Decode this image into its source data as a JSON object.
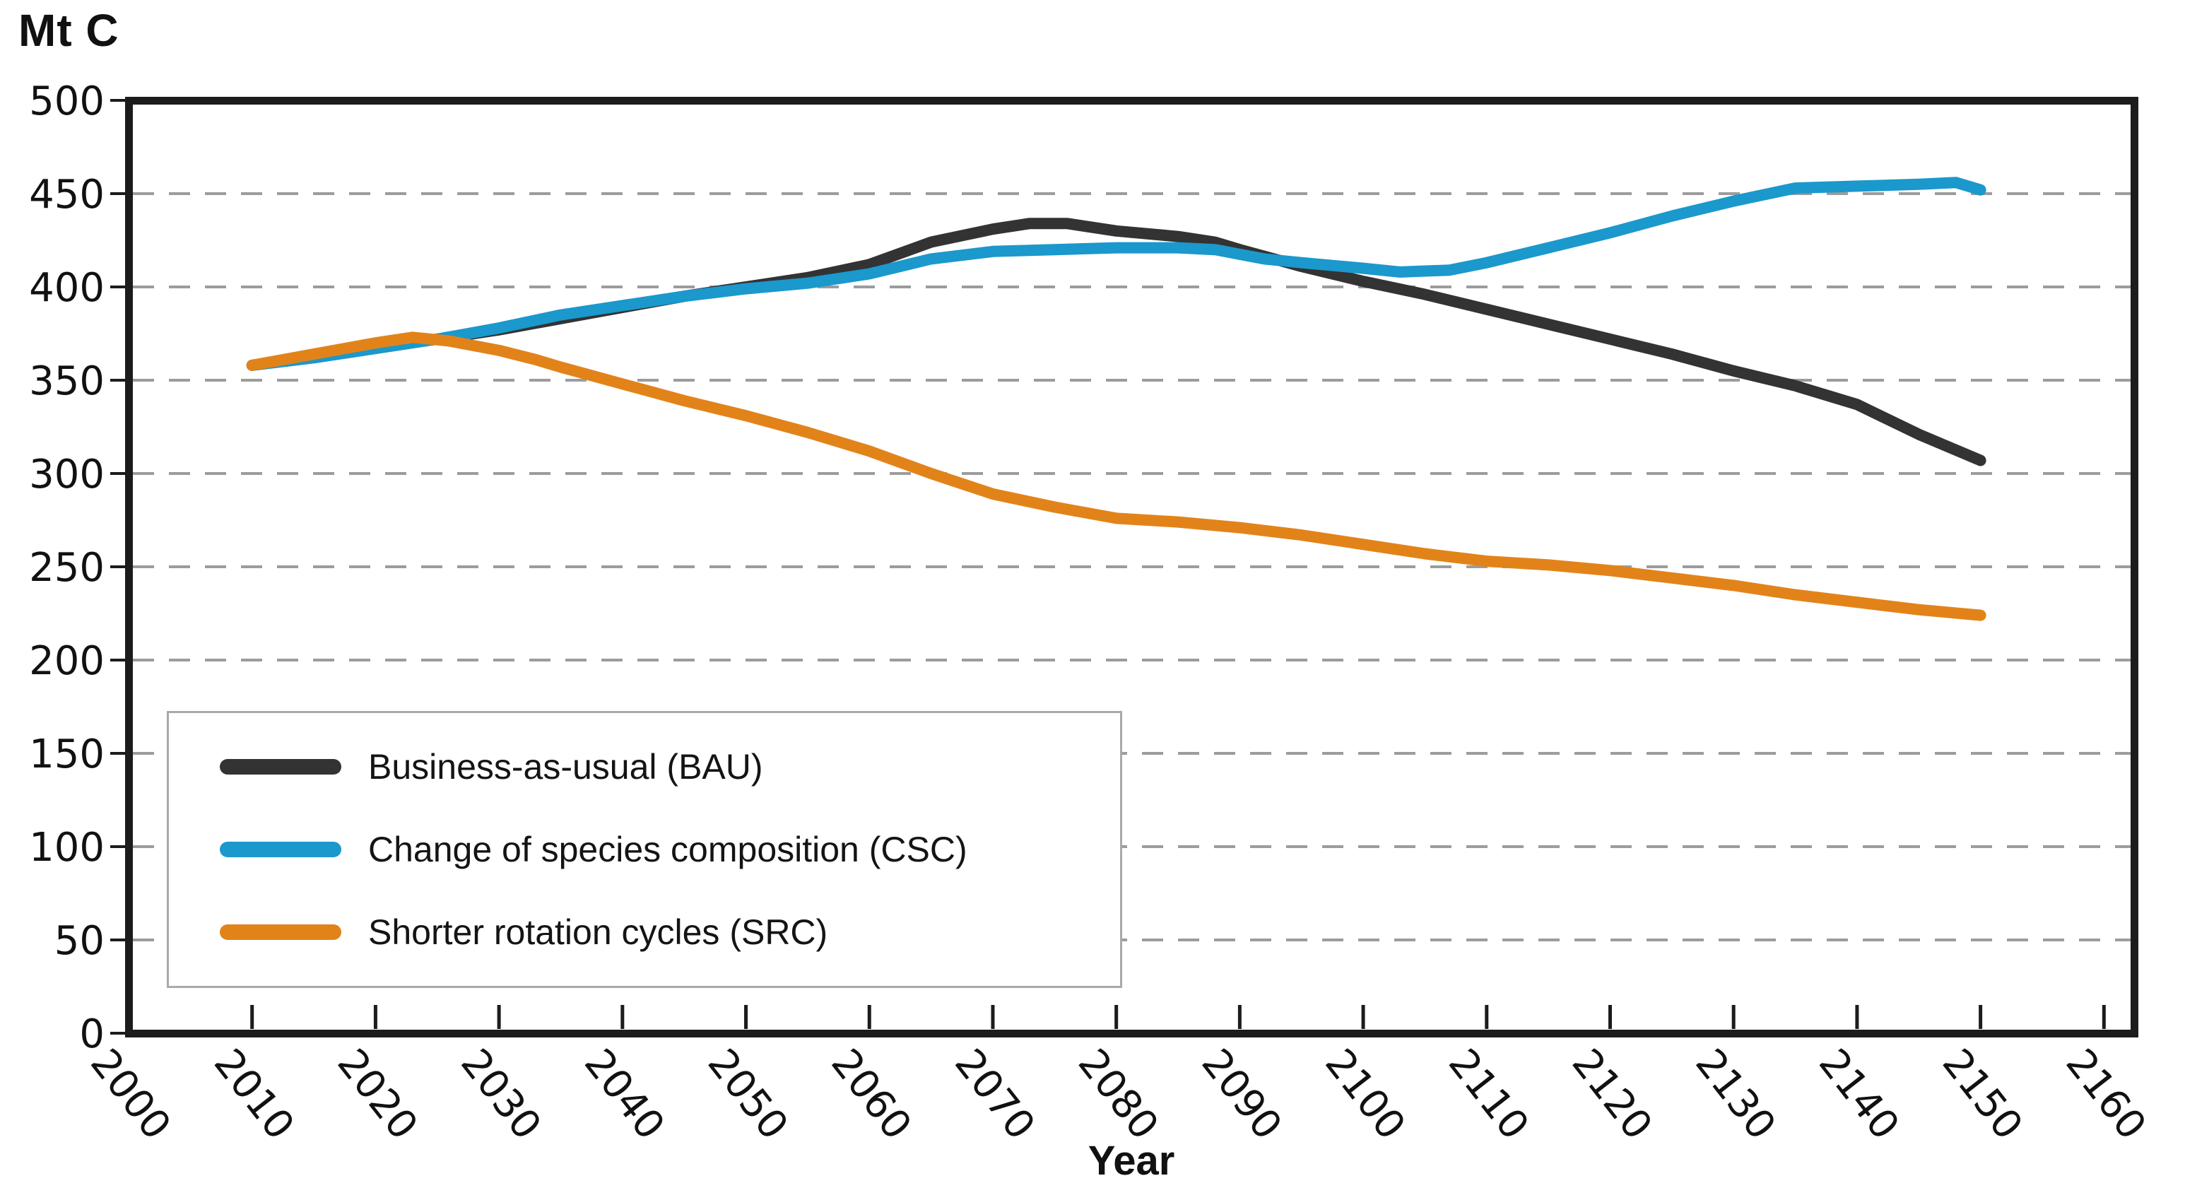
{
  "figure": {
    "unit_label": "Mt C",
    "x_axis_title": "Year"
  },
  "colors": {
    "bau": "#333333",
    "csc": "#1b98cc",
    "src": "#e2831a",
    "grid": "#9c9c9c",
    "axis": "#1c1c1c",
    "legend_border": "#a9a9a9",
    "background": "#ffffff"
  },
  "chart_data": {
    "type": "line",
    "title": "",
    "xlabel": "Year",
    "ylabel": "Mt C",
    "xlim": [
      2000,
      2162.5
    ],
    "ylim": [
      0,
      500
    ],
    "x_ticks": [
      2000,
      2010,
      2020,
      2030,
      2040,
      2050,
      2060,
      2070,
      2080,
      2090,
      2100,
      2110,
      2120,
      2130,
      2140,
      2150,
      2160
    ],
    "y_ticks": [
      0,
      50,
      100,
      150,
      200,
      250,
      300,
      350,
      400,
      450,
      500
    ],
    "grid": "horizontal dashed gridlines at every 50, none at 0 and 500",
    "legend_position": "inside lower-left",
    "series": [
      {
        "name": "Business-as-usual (BAU)",
        "short": "BAU",
        "color": "#333333",
        "points": [
          [
            2010,
            358
          ],
          [
            2015,
            363
          ],
          [
            2020,
            368
          ],
          [
            2025,
            372
          ],
          [
            2030,
            377
          ],
          [
            2035,
            383
          ],
          [
            2040,
            389
          ],
          [
            2045,
            395
          ],
          [
            2050,
            400
          ],
          [
            2055,
            405
          ],
          [
            2060,
            412
          ],
          [
            2065,
            424
          ],
          [
            2070,
            431
          ],
          [
            2073,
            434
          ],
          [
            2076,
            434
          ],
          [
            2080,
            430
          ],
          [
            2085,
            427
          ],
          [
            2088,
            424
          ],
          [
            2090,
            420
          ],
          [
            2095,
            411
          ],
          [
            2100,
            403
          ],
          [
            2105,
            396
          ],
          [
            2110,
            388
          ],
          [
            2115,
            380
          ],
          [
            2120,
            372
          ],
          [
            2125,
            364
          ],
          [
            2130,
            355
          ],
          [
            2135,
            347
          ],
          [
            2140,
            337
          ],
          [
            2145,
            321
          ],
          [
            2150,
            307
          ]
        ]
      },
      {
        "name": "Change of species composition (CSC)",
        "short": "CSC",
        "color": "#1b98cc",
        "points": [
          [
            2010,
            358
          ],
          [
            2015,
            362
          ],
          [
            2020,
            367
          ],
          [
            2025,
            372
          ],
          [
            2030,
            378
          ],
          [
            2035,
            385
          ],
          [
            2040,
            390
          ],
          [
            2045,
            395
          ],
          [
            2050,
            399
          ],
          [
            2055,
            402
          ],
          [
            2060,
            407
          ],
          [
            2065,
            415
          ],
          [
            2070,
            419
          ],
          [
            2075,
            420
          ],
          [
            2080,
            421
          ],
          [
            2085,
            421
          ],
          [
            2088,
            420
          ],
          [
            2092,
            415
          ],
          [
            2095,
            413
          ],
          [
            2100,
            410
          ],
          [
            2103,
            408
          ],
          [
            2107,
            409
          ],
          [
            2110,
            413
          ],
          [
            2115,
            421
          ],
          [
            2120,
            429
          ],
          [
            2125,
            438
          ],
          [
            2130,
            446
          ],
          [
            2135,
            453
          ],
          [
            2140,
            454
          ],
          [
            2145,
            455
          ],
          [
            2148,
            456
          ],
          [
            2150,
            452
          ]
        ]
      },
      {
        "name": "Shorter rotation cycles (SRC)",
        "short": "SRC",
        "color": "#e2831a",
        "points": [
          [
            2010,
            358
          ],
          [
            2015,
            364
          ],
          [
            2020,
            370
          ],
          [
            2023,
            373
          ],
          [
            2026,
            371
          ],
          [
            2030,
            366
          ],
          [
            2033,
            361
          ],
          [
            2035,
            357
          ],
          [
            2040,
            348
          ],
          [
            2045,
            339
          ],
          [
            2050,
            331
          ],
          [
            2055,
            322
          ],
          [
            2060,
            312
          ],
          [
            2065,
            300
          ],
          [
            2070,
            289
          ],
          [
            2075,
            282
          ],
          [
            2080,
            276
          ],
          [
            2085,
            274
          ],
          [
            2090,
            271
          ],
          [
            2095,
            267
          ],
          [
            2100,
            262
          ],
          [
            2105,
            257
          ],
          [
            2110,
            253
          ],
          [
            2115,
            251
          ],
          [
            2120,
            248
          ],
          [
            2125,
            244
          ],
          [
            2130,
            240
          ],
          [
            2135,
            235
          ],
          [
            2140,
            231
          ],
          [
            2145,
            227
          ],
          [
            2150,
            224
          ]
        ]
      }
    ]
  }
}
